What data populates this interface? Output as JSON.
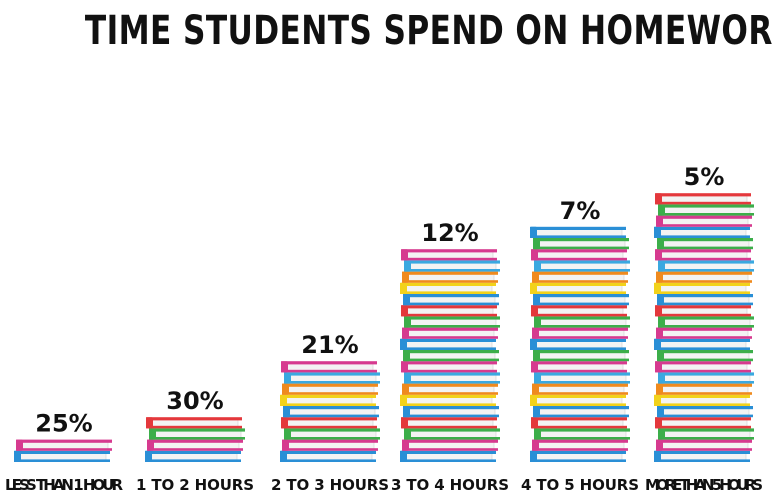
{
  "chart_data": {
    "type": "bar",
    "title": "TIME STUDENTS SPEND ON HOMEWORK",
    "categories": [
      "LESS THAN 1 HOUR",
      "1 TO 2  HOURS",
      "2 TO 3 HOURS",
      "3 TO 4 HOURS",
      "4 TO 5 HOURS",
      "MORE THAN 5 HOURS"
    ],
    "labels": [
      "25%",
      "30%",
      "21%",
      "12%",
      "7%",
      "5%"
    ],
    "book_counts": [
      2,
      4,
      9,
      19,
      21,
      24
    ],
    "book_colors": [
      "#2a8fd6",
      "#d63a8f",
      "#3cae4a",
      "#f2d21b",
      "#e4383c",
      "#ef8a1e",
      "#3aa8e0"
    ],
    "book_color_order": [
      0,
      1,
      2,
      4,
      0,
      3,
      5,
      6,
      1,
      2
    ],
    "page_color": "#f3f3f3"
  }
}
